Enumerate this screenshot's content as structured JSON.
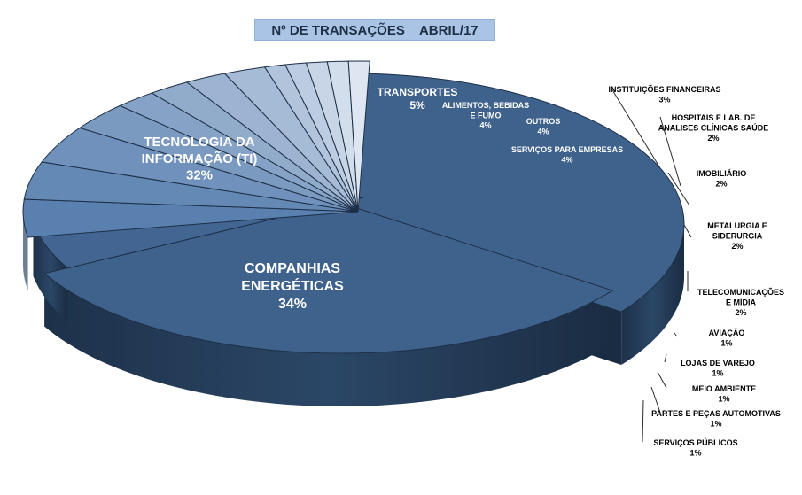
{
  "title": "Nº DE TRANSAÇÕES    ABRIL/17",
  "chart_data": {
    "type": "pie",
    "title": "Nº DE TRANSAÇÕES    ABRIL/17",
    "slices": [
      {
        "name": "COMPANHIAS ENERGÉTICAS",
        "value": 34,
        "label": "34%"
      },
      {
        "name": "TECNOLOGIA DA INFORMAÇÃO (TI)",
        "value": 32,
        "label": "32%"
      },
      {
        "name": "TRANSPORTES",
        "value": 5,
        "label": "5%"
      },
      {
        "name": "ALIMENTOS, BEBIDAS E FUMO",
        "value": 4,
        "label": "4%"
      },
      {
        "name": "OUTROS",
        "value": 4,
        "label": "4%"
      },
      {
        "name": "SERVIÇOS PARA EMPRESAS",
        "value": 4,
        "label": "4%"
      },
      {
        "name": "INSTITUIÇÕES FINANCEIRAS",
        "value": 3,
        "label": "3%"
      },
      {
        "name": "HOSPITAIS E LAB. DE ANALISES CLÍNICAS SAÚDE",
        "value": 2,
        "label": "2%"
      },
      {
        "name": "IMOBILIÁRIO",
        "value": 2,
        "label": "2%"
      },
      {
        "name": "METALURGIA E SIDERURGIA",
        "value": 2,
        "label": "2%"
      },
      {
        "name": "TELECOMUNICAÇÕES E MÍDIA",
        "value": 2,
        "label": "2%"
      },
      {
        "name": "AVIAÇÃO",
        "value": 1,
        "label": "1%"
      },
      {
        "name": "LOJAS DE VAREJO",
        "value": 1,
        "label": "1%"
      },
      {
        "name": "MEIO AMBIENTE",
        "value": 1,
        "label": "1%"
      },
      {
        "name": "PARTES E PEÇAS AUTOMOTIVAS",
        "value": 1,
        "label": "1%"
      },
      {
        "name": "SERVIÇOS PÚBLICOS",
        "value": 1,
        "label": "1%"
      }
    ],
    "colors": {
      "main": "#3f628c",
      "dark": "#1f3550",
      "light": "#dde6f1",
      "text_inside": "#ffffff",
      "text_outside": "#000000"
    },
    "legend": "none",
    "style": "3d-exploded"
  }
}
